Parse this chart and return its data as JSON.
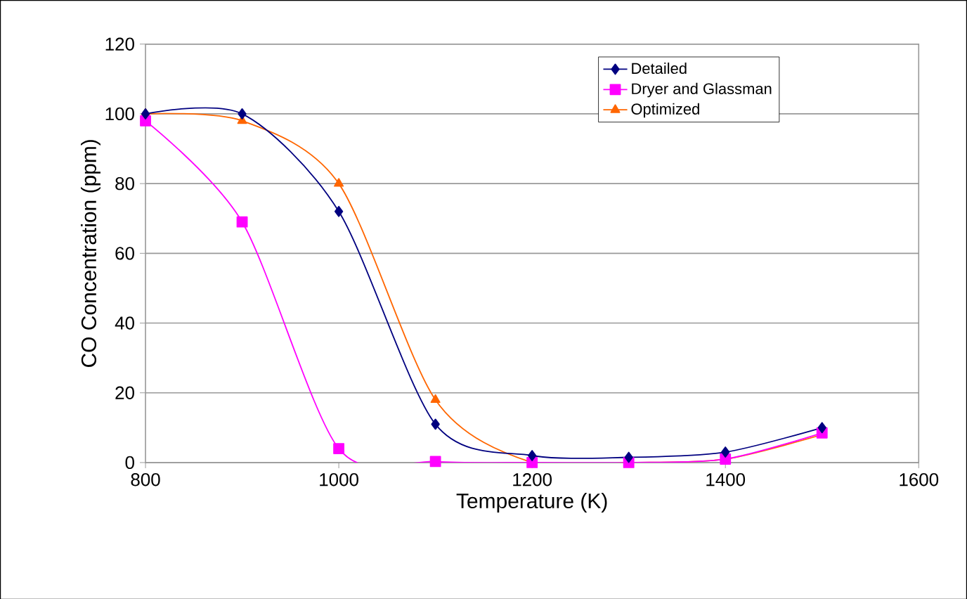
{
  "chart_data": {
    "type": "line",
    "xlabel": "Temperature (K)",
    "ylabel": "CO Concentration (ppm)",
    "x": [
      800,
      900,
      1000,
      1100,
      1200,
      1300,
      1400,
      1500
    ],
    "series": [
      {
        "name": "Detailed",
        "color": "#000080",
        "marker": "diamond",
        "values": [
          100,
          100,
          72,
          11,
          2,
          1.5,
          3,
          10
        ]
      },
      {
        "name": "Dryer and Glassman",
        "color": "#ff00ff",
        "marker": "square",
        "values": [
          98,
          69,
          4,
          0.3,
          0,
          0,
          1,
          8.5
        ]
      },
      {
        "name": "Optimized",
        "color": "#ff6600",
        "marker": "triangle",
        "values": [
          100,
          98,
          80,
          18,
          0,
          0,
          1,
          8
        ]
      }
    ],
    "xlim": [
      800,
      1600
    ],
    "xticks": [
      800,
      1000,
      1200,
      1400,
      1600
    ],
    "ylim": [
      0,
      120
    ],
    "yticks": [
      0,
      20,
      40,
      60,
      80,
      100,
      120
    ],
    "grid": "y",
    "legend": "top right",
    "line_style": "solid"
  }
}
